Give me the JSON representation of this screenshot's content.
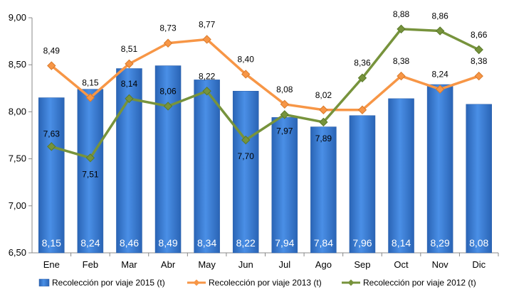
{
  "chart_data": {
    "type": "bar",
    "title": "",
    "xlabel": "",
    "ylabel": "",
    "categories": [
      "Ene",
      "Feb",
      "Mar",
      "Abr",
      "May",
      "Jun",
      "Jul",
      "Ago",
      "Sep",
      "Oct",
      "Nov",
      "Dic"
    ],
    "ylim": [
      6.5,
      9.0
    ],
    "yticks": [
      "6,50",
      "7,00",
      "7,50",
      "8,00",
      "8,50",
      "9,00"
    ],
    "ytick_values": [
      6.5,
      7.0,
      7.5,
      8.0,
      8.5,
      9.0
    ],
    "grid": false,
    "legend_position": "bottom",
    "series": [
      {
        "name": "Recolección por viaje 2015 (t)",
        "type": "bar",
        "color": "#3b7dd8",
        "values": [
          8.15,
          8.24,
          8.46,
          8.49,
          8.34,
          8.22,
          7.94,
          7.84,
          7.96,
          8.14,
          8.29,
          8.08
        ],
        "labels": [
          "8,15",
          "8,24",
          "8,46",
          "8,49",
          "8,34",
          "8,22",
          "7,94",
          "7,84",
          "7,96",
          "8,14",
          "8,29",
          "8,08"
        ]
      },
      {
        "name": "Recolección por viaje 2013 (t)",
        "type": "line",
        "color": "#f79646",
        "values": [
          8.49,
          8.15,
          8.51,
          8.73,
          8.77,
          8.4,
          8.08,
          8.02,
          8.02,
          8.38,
          8.24,
          8.38
        ],
        "labels": [
          "8,49",
          "8,15",
          "8,51",
          "8,73",
          "8,77",
          "8,40",
          "8,08",
          "8,02",
          "",
          "8,38",
          "8,24",
          "8,38"
        ]
      },
      {
        "name": "Recolección por viaje 2012 (t)",
        "type": "line",
        "color": "#77933c",
        "values": [
          7.63,
          7.51,
          8.14,
          8.06,
          8.22,
          7.7,
          7.97,
          7.89,
          8.36,
          8.88,
          8.86,
          8.66
        ],
        "labels": [
          "7,63",
          "7,51",
          "8,14",
          "8,06",
          "8,22",
          "7,70",
          "7,97",
          "7,89",
          "8,36",
          "8,88",
          "8,86",
          "8,66"
        ]
      }
    ]
  }
}
